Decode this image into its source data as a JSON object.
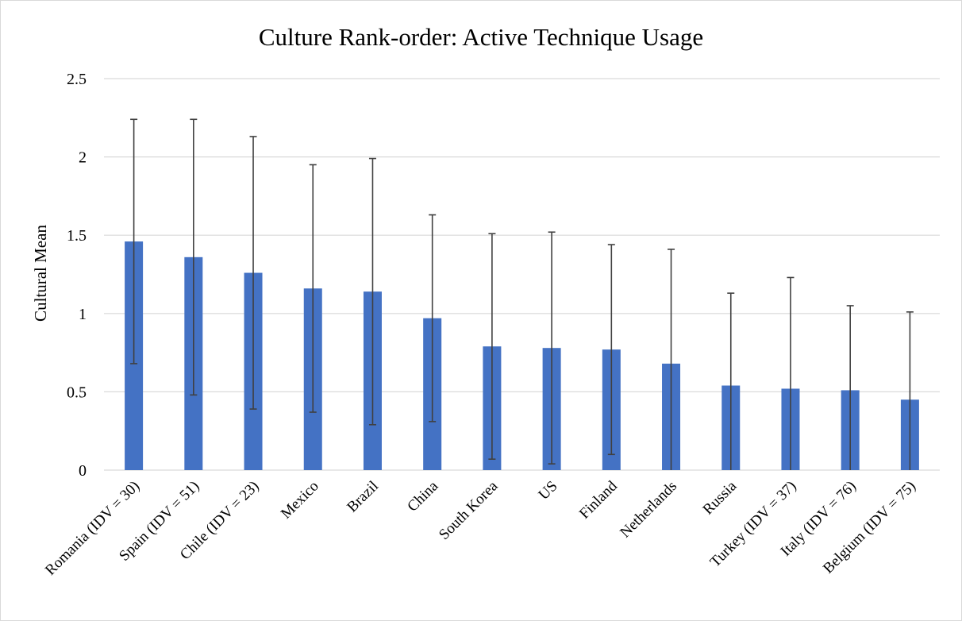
{
  "chart_data": {
    "type": "bar",
    "title": "Culture Rank-order: Active Technique Usage",
    "xlabel": "",
    "ylabel": "Cultural Mean",
    "ylim": [
      0,
      2.5
    ],
    "yticks": [
      "0",
      "0.5",
      "1",
      "1.5",
      "2",
      "2.5"
    ],
    "categories": [
      "Romania (IDV = 30)",
      "Spain (IDV = 51)",
      "Chile (IDV = 23)",
      "Mexico",
      "Brazil",
      "China",
      "South Korea",
      "US",
      "Finland",
      "Netherlands",
      "Russia",
      "Turkey (IDV = 37)",
      "Italy (IDV = 76)",
      "Belgium (IDV = 75)"
    ],
    "values": [
      1.46,
      1.36,
      1.26,
      1.16,
      1.14,
      0.97,
      0.79,
      0.78,
      0.77,
      0.68,
      0.54,
      0.52,
      0.51,
      0.45
    ],
    "error": [
      0.78,
      0.88,
      0.87,
      0.79,
      0.85,
      0.66,
      0.72,
      0.74,
      0.67,
      0.73,
      0.59,
      0.71,
      0.54,
      0.56
    ],
    "grid": true,
    "legend": "none",
    "bar_color": "#4472c4",
    "errorbar_color": "#404040",
    "gridline_color": "#d9d9d9"
  }
}
